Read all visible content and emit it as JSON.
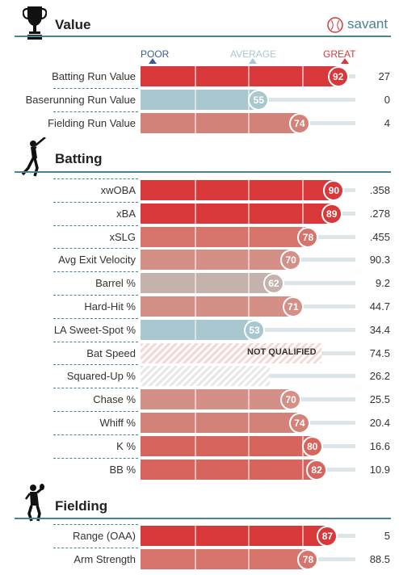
{
  "header": {
    "brand_text": "savant",
    "scale": {
      "poor": "POOR",
      "average": "AVERAGE",
      "great": "GREAT"
    }
  },
  "colors": {
    "section_line": "#4a8391",
    "great": "#d8383a",
    "average": "#a9c7ce",
    "below_avg": "#b9a9a5"
  },
  "sections": {
    "value": {
      "title": "Value",
      "icon": "trophy-icon",
      "rows": [
        {
          "label": "Batting Run Value",
          "percentile": "92",
          "stat": "27",
          "color": "#d8383a"
        },
        {
          "label": "Baserunning Run Value",
          "percentile": "55",
          "stat": "0",
          "color": "#a9c7ce"
        },
        {
          "label": "Fielding Run Value",
          "percentile": "74",
          "stat": "4",
          "color": "#d3827a"
        }
      ]
    },
    "batting": {
      "title": "Batting",
      "icon": "batter-icon",
      "rows": [
        {
          "label": "xwOBA",
          "percentile": "90",
          "stat": ".358",
          "color": "#d8383a"
        },
        {
          "label": "xBA",
          "percentile": "89",
          "stat": ".278",
          "color": "#d8383a"
        },
        {
          "label": "xSLG",
          "percentile": "78",
          "stat": ".455",
          "color": "#d7746c"
        },
        {
          "label": "Avg Exit Velocity",
          "percentile": "70",
          "stat": "90.3",
          "color": "#d48f86"
        },
        {
          "label": "Barrel %",
          "percentile": "62",
          "stat": "9.2",
          "color": "#c5b2ad"
        },
        {
          "label": "Hard-Hit %",
          "percentile": "71",
          "stat": "44.7",
          "color": "#d48f86"
        },
        {
          "label": "LA Sweet-Spot %",
          "percentile": "53",
          "stat": "34.4",
          "color": "#a9c7ce"
        },
        {
          "label": "Bat Speed",
          "percentile": "",
          "stat": "74.5",
          "not_qualified": "NOT QUALIFIED"
        },
        {
          "label": "Squared-Up %",
          "percentile": "",
          "stat": "26.2"
        },
        {
          "label": "Chase %",
          "percentile": "70",
          "stat": "25.5",
          "color": "#d48f86"
        },
        {
          "label": "Whiff %",
          "percentile": "74",
          "stat": "20.4",
          "color": "#d3827a"
        },
        {
          "label": "K %",
          "percentile": "80",
          "stat": "16.6",
          "color": "#d7655d"
        },
        {
          "label": "BB %",
          "percentile": "82",
          "stat": "10.9",
          "color": "#d7655d"
        }
      ]
    },
    "fielding": {
      "title": "Fielding",
      "icon": "fielder-icon",
      "rows": [
        {
          "label": "Range (OAA)",
          "percentile": "87",
          "stat": "5",
          "color": "#d8383a"
        },
        {
          "label": "Arm Strength",
          "percentile": "78",
          "stat": "88.5",
          "color": "#d7746c"
        }
      ]
    }
  }
}
